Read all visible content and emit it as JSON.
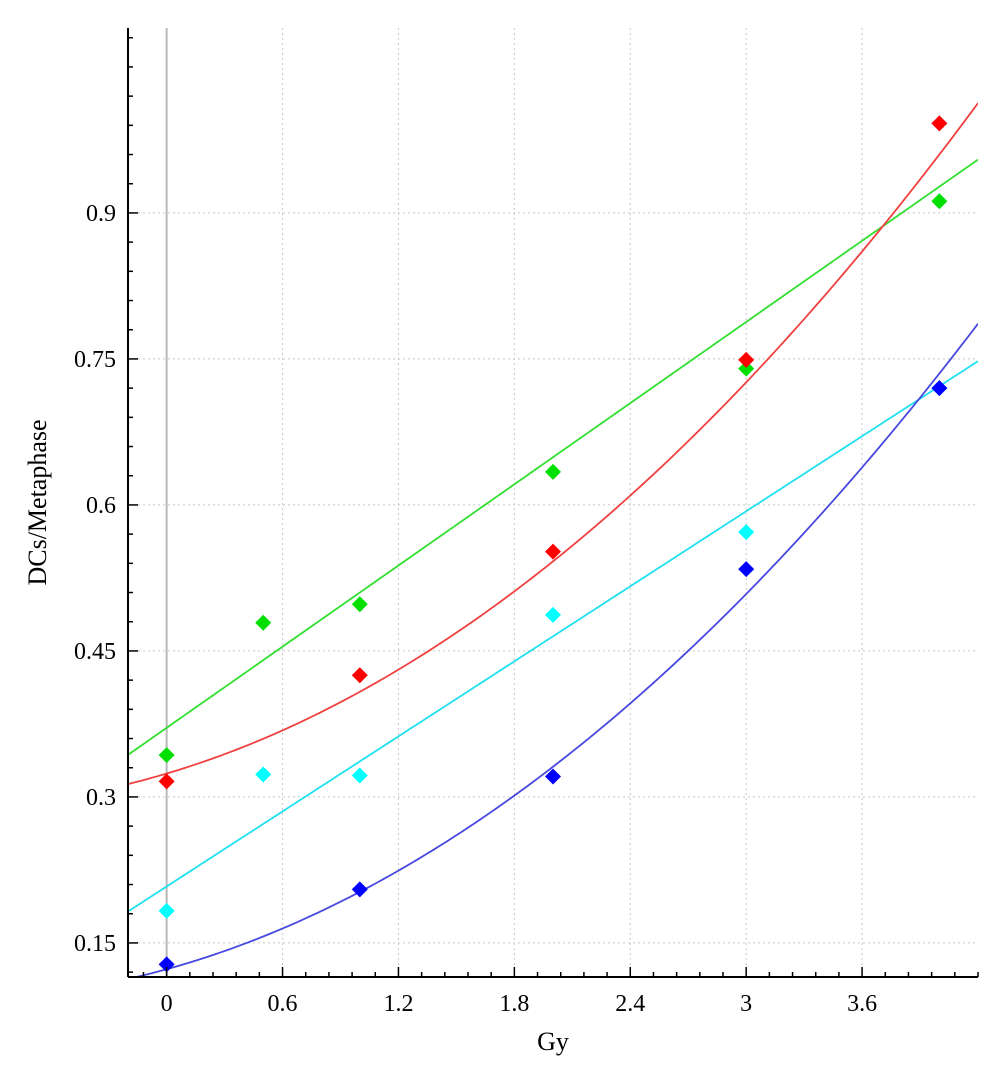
{
  "chart_data": {
    "type": "scatter",
    "title": "",
    "xlabel": "Gy",
    "ylabel": "DCs/Metaphase",
    "xlim": [
      -0.2,
      4.2
    ],
    "ylim": [
      0.115,
      1.09
    ],
    "xticks": [
      0,
      0.6,
      1.2,
      1.8,
      2.4,
      3,
      3.6
    ],
    "xtick_labels": [
      "0",
      "0.6",
      "1.2",
      "1.8",
      "2.4",
      "3",
      "3.6"
    ],
    "yticks": [
      0.15,
      0.3,
      0.45,
      0.6,
      0.75,
      0.9
    ],
    "ytick_labels": [
      "0.15",
      "0.3",
      "0.45",
      "0.6",
      "0.75",
      "0.9"
    ],
    "grid": true,
    "legend": false,
    "series": [
      {
        "color": "#00e000",
        "line_color": "#30e030",
        "points": [
          [
            0,
            0.343
          ],
          [
            0.5,
            0.479
          ],
          [
            1,
            0.498
          ],
          [
            2,
            0.634
          ],
          [
            3,
            0.74
          ],
          [
            4,
            0.912
          ]
        ],
        "fit": {
          "kind": "linear",
          "a": 0.371,
          "b": 0.139,
          "c": 0
        }
      },
      {
        "color": "#ff0000",
        "line_color": "#f04040",
        "points": [
          [
            0,
            0.316
          ],
          [
            1,
            0.425
          ],
          [
            2,
            0.552
          ],
          [
            3,
            0.749
          ],
          [
            4,
            0.992
          ]
        ],
        "fit": {
          "kind": "quadratic",
          "a": 0.324,
          "b": 0.059,
          "c": 0.025
        }
      },
      {
        "color": "#00ffff",
        "line_color": "#20e0f0",
        "points": [
          [
            0,
            0.183
          ],
          [
            0.5,
            0.323
          ],
          [
            1,
            0.322
          ],
          [
            2,
            0.487
          ],
          [
            3,
            0.572
          ],
          [
            4,
            0.72
          ]
        ],
        "fit": {
          "kind": "linear",
          "a": 0.208,
          "b": 0.1285,
          "c": 0
        }
      },
      {
        "color": "#0000ff",
        "line_color": "#4848e0",
        "points": [
          [
            0,
            0.128
          ],
          [
            1,
            0.205
          ],
          [
            2,
            0.321
          ],
          [
            3,
            0.534
          ],
          [
            4,
            0.72
          ]
        ],
        "fit": {
          "kind": "quadratic",
          "a": 0.123,
          "b": 0.055,
          "c": 0.0245
        }
      }
    ]
  }
}
